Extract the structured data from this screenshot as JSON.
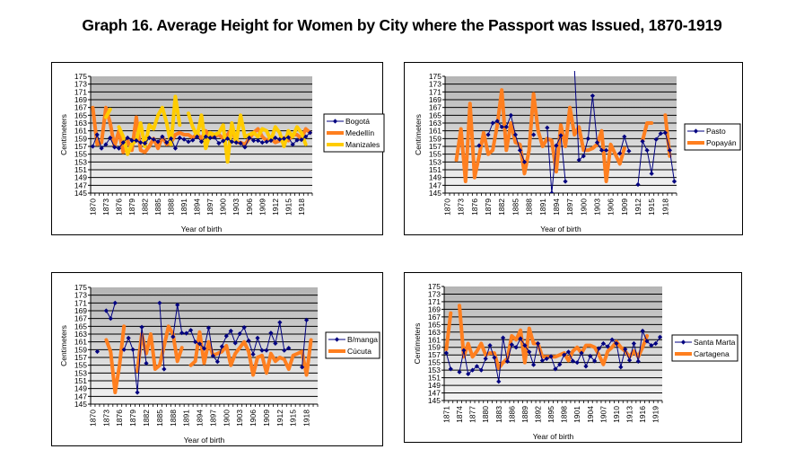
{
  "title": "Graph 16. Average Height for Women by City where the Passport was Issued, 1870-1919",
  "colors": {
    "navy": "#000080",
    "orange": "#FF7F1F",
    "yellow": "#FFCC00"
  },
  "chart_data": [
    {
      "type": "line",
      "title": "",
      "xlabel": "Year of birth",
      "ylabel": "Centimeters",
      "ylim": [
        145,
        175
      ],
      "yticks": [
        145,
        147,
        149,
        151,
        153,
        155,
        157,
        159,
        161,
        163,
        165,
        167,
        169,
        171,
        173,
        175
      ],
      "x_start": 1870,
      "x_end": 1920,
      "xtick_labels": [
        "1870",
        "1873",
        "1876",
        "1879",
        "1882",
        "1885",
        "1888",
        "1891",
        "1894",
        "1897",
        "1900",
        "1903",
        "1906",
        "1909",
        "1912",
        "1915",
        "1918"
      ],
      "grid": true,
      "legend_position": "right",
      "series": [
        {
          "name": "Bogotá",
          "color": "#000080",
          "style": "marker",
          "values": [
            157,
            160,
            156.5,
            157.5,
            159.2,
            156.8,
            156.5,
            158,
            159.2,
            158.5,
            158.5,
            158,
            157.8,
            159.2,
            158.8,
            158.2,
            159.5,
            158,
            159,
            156.5,
            159.2,
            158.8,
            158.2,
            158.6,
            159.5,
            158.2,
            159.5,
            159.2,
            159.3,
            157.8,
            158.4,
            159,
            158.2,
            158,
            157.8,
            156.8,
            159.2,
            158.5,
            158.5,
            158,
            158.2,
            158.5,
            159.2,
            158.8,
            159,
            159.3,
            157.5,
            158.6,
            158.7,
            159.5,
            160.5
          ]
        },
        {
          "name": "Medellín",
          "color": "#FF7F1F",
          "style": "thick",
          "values": [
            167,
            157.5,
            158,
            167,
            163,
            157,
            161,
            155.5,
            158.5,
            156,
            164.5,
            156,
            155.5,
            157,
            159,
            156.5,
            159.5,
            157.5,
            158,
            160,
            160.5,
            160,
            160,
            159.2,
            160.2,
            159,
            161,
            159.5,
            159.5,
            160,
            159,
            160,
            161.5,
            158,
            158,
            157.5,
            159,
            160.5,
            161.5,
            159.5,
            158.5,
            159,
            158,
            158.5,
            159.2,
            158.5,
            160,
            160,
            159,
            161.5,
            160.5
          ]
        },
        {
          "name": "Manizales",
          "color": "#FFCC00",
          "style": "thick",
          "values": [
            null,
            null,
            null,
            164.5,
            166.5,
            null,
            162,
            159.5,
            155,
            157.5,
            158.5,
            163,
            157,
            162.5,
            161.5,
            165,
            167,
            163,
            157.5,
            169.8,
            162.5,
            null,
            165.5,
            162,
            159.5,
            165,
            156.5,
            160.5,
            160,
            160.5,
            162.5,
            153,
            163,
            158,
            165,
            159.5,
            160,
            160.5,
            159.5,
            161.5,
            161,
            158.5,
            162,
            160.5,
            157,
            161,
            159.5,
            162,
            160.5,
            157.5,
            null
          ]
        }
      ]
    },
    {
      "type": "line",
      "title": "",
      "xlabel": "Year of birth",
      "ylabel": "Centimeters",
      "ylim": [
        145,
        175
      ],
      "yticks": [
        145,
        147,
        149,
        151,
        153,
        155,
        157,
        159,
        161,
        163,
        165,
        167,
        169,
        171,
        173,
        175
      ],
      "x_start": 1870,
      "x_end": 1920,
      "xtick_labels": [
        "1870",
        "1873",
        "1876",
        "1879",
        "1882",
        "1885",
        "1888",
        "1891",
        "1894",
        "1897",
        "1900",
        "1903",
        "1906",
        "1909",
        "1912",
        "1915",
        "1918"
      ],
      "grid": true,
      "legend_position": "right",
      "series": [
        {
          "name": "Pasto",
          "color": "#000080",
          "style": "marker",
          "values": [
            null,
            null,
            null,
            null,
            null,
            null,
            null,
            157.2,
            null,
            160,
            163,
            163.5,
            162,
            162,
            165,
            160,
            156,
            153,
            null,
            160,
            null,
            null,
            161.8,
            145,
            157.2,
            159.8,
            148,
            null,
            177,
            153.5,
            154.5,
            159,
            170,
            158,
            156,
            156,
            null,
            null,
            155.2,
            159.5,
            155.8,
            null,
            147.2,
            158.3,
            156,
            150,
            158.8,
            160.3,
            160.5,
            156,
            148
          ]
        },
        {
          "name": "Popayán",
          "color": "#FF7F1F",
          "style": "thick",
          "values": [
            null,
            null,
            153.5,
            161.5,
            148,
            168,
            149,
            154.5,
            160.5,
            155,
            156,
            162.5,
            171.5,
            156,
            163,
            158,
            157.5,
            150,
            156,
            170.5,
            161,
            157,
            159,
            158.5,
            150.5,
            162.5,
            157,
            167,
            160,
            162,
            156,
            156,
            156.5,
            157.5,
            161,
            148,
            157.5,
            155,
            152.5,
            156.5,
            null,
            null,
            null,
            158.5,
            163,
            163,
            null,
            null,
            165,
            154.5,
            null
          ]
        }
      ]
    },
    {
      "type": "line",
      "title": "",
      "xlabel": "Year of birth",
      "ylabel": "Centimeters",
      "ylim": [
        145,
        175
      ],
      "yticks": [
        145,
        147,
        149,
        151,
        153,
        155,
        157,
        159,
        161,
        163,
        165,
        167,
        169,
        171,
        173,
        175
      ],
      "x_start": 1870,
      "x_end": 1920,
      "xtick_labels": [
        "1870",
        "1873",
        "1876",
        "1879",
        "1882",
        "1885",
        "1888",
        "1891",
        "1894",
        "1897",
        "1900",
        "1903",
        "1906",
        "1909",
        "1912",
        "1915",
        "1918"
      ],
      "grid": true,
      "legend_position": "right",
      "series": [
        {
          "name": "B/manga",
          "color": "#000080",
          "style": "marker",
          "values": [
            null,
            158.5,
            null,
            169,
            167,
            171,
            null,
            159,
            162,
            159,
            148,
            164.8,
            155.5,
            null,
            null,
            171,
            154,
            null,
            162.3,
            170.5,
            163.3,
            163.2,
            164,
            161,
            160.5,
            159.3,
            164.6,
            157.4,
            155.9,
            159.8,
            162.5,
            163.8,
            160.7,
            163.1,
            164.7,
            161.3,
            157.8,
            162,
            158.8,
            158.8,
            163.3,
            160.6,
            166,
            158.8,
            159.4,
            null,
            null,
            154.5,
            166.6,
            null,
            null
          ]
        },
        {
          "name": "Cúcuta",
          "color": "#FF7F1F",
          "style": "thick",
          "values": [
            null,
            null,
            null,
            161.5,
            158.5,
            148,
            155,
            165,
            null,
            null,
            153.5,
            163,
            158,
            163,
            154,
            155,
            160,
            165,
            163,
            156,
            159.5,
            null,
            155,
            156,
            163.5,
            155.5,
            161,
            157.5,
            158,
            158.5,
            160,
            155,
            158,
            159.5,
            161,
            158.5,
            152.5,
            157,
            157.5,
            153,
            158,
            156,
            157,
            156.5,
            154,
            157.5,
            158,
            158.5,
            152.5,
            161.5,
            null
          ]
        }
      ]
    },
    {
      "type": "line",
      "title": "",
      "xlabel": "Year of birth",
      "ylabel": "Centimeters",
      "ylim": [
        145,
        175
      ],
      "yticks": [
        145,
        147,
        149,
        151,
        153,
        155,
        157,
        159,
        161,
        163,
        165,
        167,
        169,
        171,
        173,
        175
      ],
      "x_start": 1871,
      "x_end": 1920,
      "xtick_labels": [
        "1871",
        "1874",
        "1877",
        "1880",
        "1883",
        "1886",
        "1889",
        "1892",
        "1895",
        "1898",
        "1901",
        "1904",
        "1907",
        "1910",
        "1913",
        "1916",
        "1919"
      ],
      "grid": true,
      "legend_position": "right",
      "series": [
        {
          "name": "Santa Marta",
          "color": "#000080",
          "style": "marker",
          "values": [
            157.5,
            153.3,
            null,
            152.5,
            158.2,
            152,
            153,
            154,
            153,
            156,
            159.5,
            156.3,
            150,
            161.5,
            155.3,
            159.7,
            159,
            161.3,
            159.5,
            157.8,
            154.4,
            160,
            155.5,
            156,
            156.6,
            153.3,
            154.5,
            157,
            157.8,
            155.4,
            155,
            157.5,
            154,
            156.7,
            155.4,
            158.7,
            160,
            159.2,
            161,
            160,
            153.8,
            158.5,
            155.6,
            160,
            155.3,
            163.3,
            160.6,
            159.5,
            160,
            161.7
          ]
        },
        {
          "name": "Cartagena",
          "color": "#FF7F1F",
          "style": "thick",
          "values": [
            158.5,
            168,
            null,
            170,
            156.5,
            160,
            156.5,
            158,
            160,
            157,
            157.5,
            157.5,
            153.5,
            155,
            156,
            162,
            161,
            163.5,
            155,
            164,
            160,
            160,
            156.5,
            156.5,
            156.5,
            156.5,
            157,
            157.5,
            155.5,
            158,
            159,
            157.5,
            159.5,
            159.5,
            159,
            157,
            154.5,
            158,
            159,
            160.5,
            159,
            158,
            156.5,
            158,
            156.5,
            159,
            162,
            null,
            null,
            null
          ]
        }
      ]
    }
  ]
}
